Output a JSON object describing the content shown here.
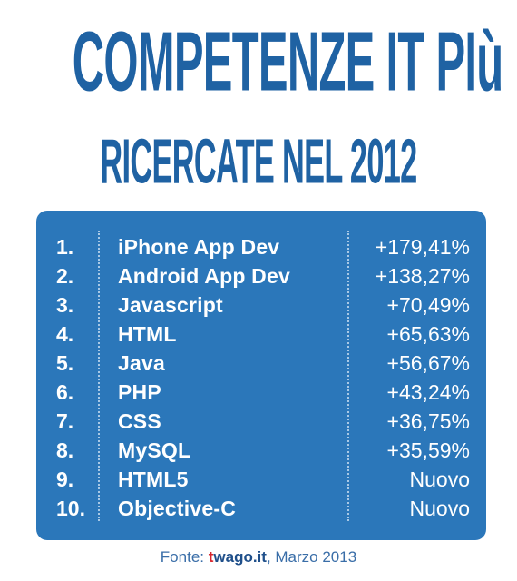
{
  "title": {
    "line1": "COMPETENZE IT PIù",
    "line2": "RICERCATE NEL 2012"
  },
  "ranking": [
    {
      "rank": "1.",
      "name": "iPhone App Dev",
      "value": "+179,41%"
    },
    {
      "rank": "2.",
      "name": "Android App Dev",
      "value": "+138,27%"
    },
    {
      "rank": "3.",
      "name": "Javascript",
      "value": "+70,49%"
    },
    {
      "rank": "4.",
      "name": "HTML",
      "value": "+65,63%"
    },
    {
      "rank": "5.",
      "name": "Java",
      "value": "+56,67%"
    },
    {
      "rank": "6.",
      "name": "PHP",
      "value": "+43,24%"
    },
    {
      "rank": "7.",
      "name": "CSS",
      "value": "+36,75%"
    },
    {
      "rank": "8.",
      "name": "MySQL",
      "value": "+35,59%"
    },
    {
      "rank": "9.",
      "name": "HTML5",
      "value": "Nuovo"
    },
    {
      "rank": "10.",
      "name": "Objective-C",
      "value": "Nuovo"
    }
  ],
  "footer": {
    "prefix": "Fonte: ",
    "brand_t": "t",
    "brand_rest": "wago.it",
    "suffix": ", Marzo 2013"
  },
  "colors": {
    "title": "#1f62a3",
    "panel": "#2b77ba",
    "text_on_panel": "#ffffff",
    "brand_accent": "#d9262e"
  }
}
